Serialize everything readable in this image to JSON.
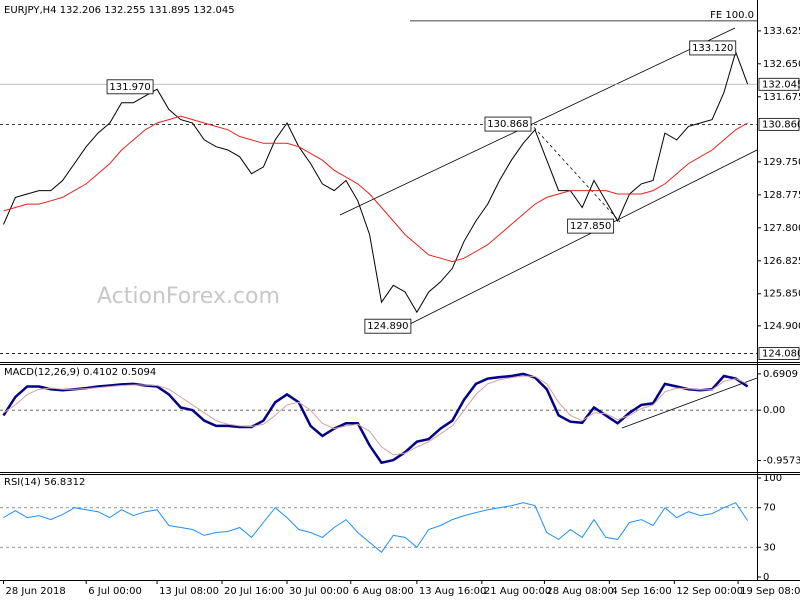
{
  "chart_data": [
    {
      "type": "line",
      "title": "EURJPY,H4 132.206 132.255 131.895 132.045",
      "watermark": "ActionForex.com",
      "xlim": [
        -0.3,
        63.8
      ],
      "ylim": [
        123.89,
        134.39
      ],
      "yticks": [
        {
          "value": 124.9,
          "label": "124.900"
        },
        {
          "value": 125.85,
          "label": "125.850"
        },
        {
          "value": 126.825,
          "label": "126.825"
        },
        {
          "value": 127.8,
          "label": "127.800"
        },
        {
          "value": 128.775,
          "label": "128.775"
        },
        {
          "value": 129.75,
          "label": "129.750"
        },
        {
          "value": 131.675,
          "label": "131.675"
        },
        {
          "value": 132.65,
          "label": "132.650"
        },
        {
          "value": 133.625,
          "label": "133.625"
        }
      ],
      "series": [
        {
          "color": "#000000",
          "values": [
            127.9,
            128.7,
            128.8,
            128.9,
            128.9,
            129.2,
            129.7,
            130.2,
            130.6,
            130.9,
            131.5,
            131.5,
            131.7,
            131.9,
            131.3,
            131.0,
            130.9,
            130.4,
            130.2,
            130.1,
            129.9,
            129.4,
            129.6,
            130.4,
            130.9,
            130.2,
            129.7,
            129.1,
            128.9,
            129.2,
            128.6,
            127.6,
            125.6,
            126.1,
            125.9,
            125.3,
            125.9,
            126.2,
            126.6,
            127.4,
            128.0,
            128.5,
            129.2,
            129.8,
            130.3,
            130.7,
            129.8,
            128.9,
            128.9,
            128.4,
            129.2,
            128.6,
            128.0,
            128.8,
            129.1,
            129.2,
            130.6,
            130.4,
            130.8,
            130.9,
            131.0,
            131.8,
            133.0,
            132.05
          ]
        },
        {
          "color": "#e8231e",
          "values": [
            128.3,
            128.4,
            128.5,
            128.5,
            128.6,
            128.7,
            128.9,
            129.1,
            129.4,
            129.7,
            130.1,
            130.4,
            130.7,
            130.9,
            131.0,
            131.1,
            131.0,
            130.9,
            130.8,
            130.7,
            130.5,
            130.4,
            130.3,
            130.3,
            130.3,
            130.2,
            130.0,
            129.8,
            129.5,
            129.3,
            129.1,
            128.8,
            128.4,
            128.0,
            127.6,
            127.3,
            127.0,
            126.9,
            126.8,
            126.9,
            127.1,
            127.3,
            127.6,
            127.9,
            128.2,
            128.5,
            128.7,
            128.8,
            128.9,
            128.9,
            128.9,
            128.9,
            128.8,
            128.8,
            128.8,
            128.9,
            129.1,
            129.4,
            129.7,
            129.9,
            130.1,
            130.4,
            130.7,
            130.9
          ]
        }
      ],
      "levels": [
        {
          "value": 133.92,
          "label": "FE 100.0",
          "style": "fe"
        },
        {
          "value": 132.045,
          "label": "132.045",
          "style": "current"
        },
        {
          "value": 130.86,
          "label": "130.860",
          "style": "dashed"
        },
        {
          "value": 124.08,
          "label": "124.080",
          "style": "dashed"
        }
      ],
      "annotations": [
        {
          "x": 13,
          "value": 131.97,
          "label": "131.970"
        },
        {
          "x": 45,
          "value": 130.868,
          "label": "130.868"
        },
        {
          "x": 35,
          "value": 124.89,
          "label": "124.890"
        },
        {
          "x": 52,
          "value": 127.85,
          "label": "127.850"
        },
        {
          "x": 62,
          "value": 133.12,
          "label": "133.120"
        }
      ]
    },
    {
      "type": "line",
      "title": "MACD(12,26,9) 0.4102 0.5094",
      "xlim": [
        -0.3,
        63.8
      ],
      "ylim": [
        -1.139,
        0.8217
      ],
      "yticks": [
        0.6909,
        {
          "value": 0,
          "label": "0.00"
        },
        -0.9573
      ],
      "zero_line": true,
      "series": [
        {
          "color": "#00008b",
          "values": [
            -0.1,
            0.25,
            0.45,
            0.45,
            0.4,
            0.38,
            0.4,
            0.42,
            0.45,
            0.47,
            0.49,
            0.5,
            0.47,
            0.45,
            0.3,
            0.05,
            0.0,
            -0.2,
            -0.3,
            -0.3,
            -0.32,
            -0.32,
            -0.2,
            0.15,
            0.3,
            0.15,
            -0.3,
            -0.49,
            -0.35,
            -0.25,
            -0.25,
            -0.67,
            -1.0,
            -0.95,
            -0.8,
            -0.6,
            -0.55,
            -0.35,
            -0.2,
            0.2,
            0.5,
            0.6,
            0.63,
            0.65,
            0.69,
            0.62,
            0.4,
            -0.1,
            -0.22,
            -0.24,
            0.05,
            -0.1,
            -0.25,
            -0.05,
            0.1,
            0.13,
            0.5,
            0.45,
            0.4,
            0.38,
            0.4,
            0.65,
            0.6,
            0.45
          ]
        },
        {
          "color": "#d8a0a0",
          "values": [
            -0.05,
            0.1,
            0.3,
            0.4,
            0.42,
            0.4,
            0.4,
            0.41,
            0.43,
            0.45,
            0.47,
            0.48,
            0.48,
            0.47,
            0.4,
            0.25,
            0.1,
            -0.05,
            -0.2,
            -0.27,
            -0.3,
            -0.31,
            -0.27,
            -0.1,
            0.1,
            0.15,
            0.0,
            -0.25,
            -0.35,
            -0.3,
            -0.27,
            -0.4,
            -0.7,
            -0.85,
            -0.82,
            -0.7,
            -0.6,
            -0.45,
            -0.3,
            0.0,
            0.3,
            0.5,
            0.58,
            0.62,
            0.65,
            0.64,
            0.5,
            0.15,
            -0.1,
            -0.2,
            -0.05,
            -0.07,
            -0.18,
            -0.1,
            0.03,
            0.1,
            0.35,
            0.42,
            0.41,
            0.39,
            0.39,
            0.55,
            0.6,
            0.5
          ]
        }
      ]
    },
    {
      "type": "line",
      "title": "RSI(14) 56.8312",
      "xlim": [
        -0.3,
        63.8
      ],
      "ylim": [
        -1,
        101
      ],
      "yticks": [
        0,
        30,
        70,
        100
      ],
      "dashed_ticks": [
        30,
        70
      ],
      "xticks": [
        {
          "value": 0,
          "label": "28 Jun 2018"
        },
        {
          "value": 7,
          "label": "6 Jul 00:00"
        },
        {
          "value": 13,
          "label": "13 Jul 08:00"
        },
        {
          "value": 18.5,
          "label": "20 Jul 16:00"
        },
        {
          "value": 24,
          "label": "30 Jul 00:00"
        },
        {
          "value": 29.4,
          "label": "6 Aug 08:00"
        },
        {
          "value": 35,
          "label": "13 Aug 16:00"
        },
        {
          "value": 40.5,
          "label": "21 Aug 00:00"
        },
        {
          "value": 45.8,
          "label": "28 Aug 08:00"
        },
        {
          "value": 51.3,
          "label": "4 Sep 16:00"
        },
        {
          "value": 56.8,
          "label": "12 Sep 00:00"
        },
        {
          "value": 62.2,
          "label": "19 Sep 08:00"
        }
      ],
      "series": [
        {
          "color": "#1e90ff",
          "values": [
            60,
            67,
            60,
            62,
            58,
            63,
            70,
            68,
            66,
            60,
            68,
            62,
            66,
            68,
            52,
            50,
            48,
            42,
            45,
            46,
            50,
            40,
            55,
            70,
            60,
            48,
            45,
            40,
            50,
            58,
            45,
            35,
            25,
            42,
            40,
            30,
            48,
            52,
            58,
            62,
            65,
            68,
            70,
            72,
            75,
            72,
            45,
            38,
            48,
            40,
            58,
            40,
            38,
            55,
            58,
            52,
            70,
            60,
            66,
            62,
            64,
            70,
            75,
            57
          ]
        }
      ]
    }
  ]
}
